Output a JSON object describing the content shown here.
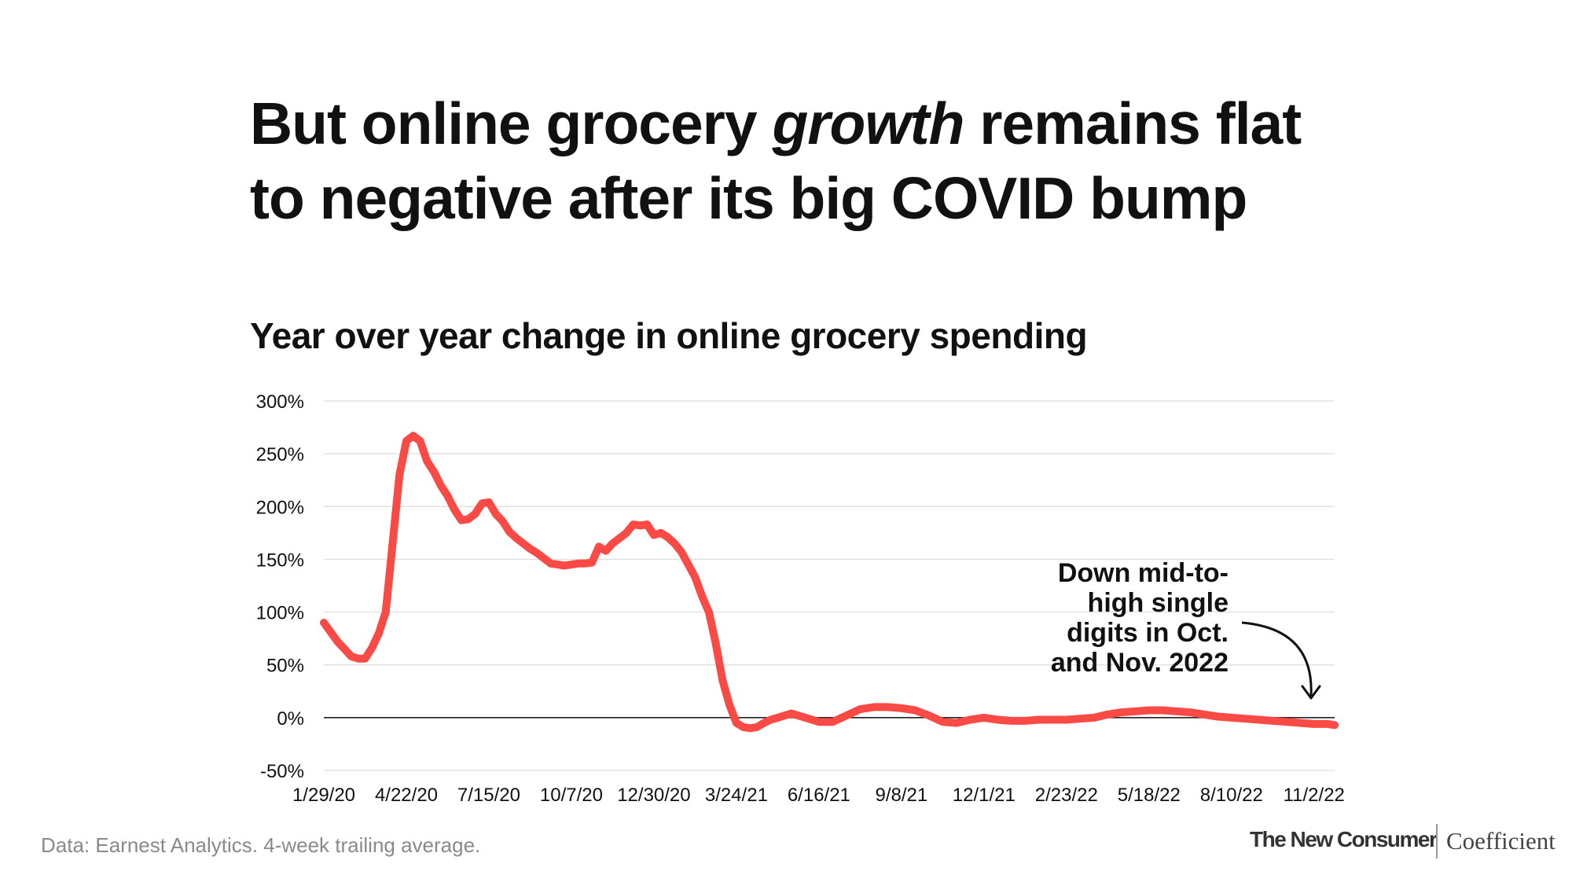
{
  "headline": {
    "part1": "But online grocery ",
    "emphasis": "growth",
    "part2": " remains flat",
    "line2": "to negative after its big COVID bump"
  },
  "footer": {
    "source": "Data: Earnest Analytics. 4-week trailing average.",
    "brand_left": "The New Consumer",
    "brand_right": "Coefficient"
  },
  "colors": {
    "line": "#f94a45",
    "grid": "#dddddd",
    "zero_line": "#222222",
    "text": "#111111"
  },
  "chart_data": {
    "type": "line",
    "title": "Year over year change in online grocery spending",
    "xlabel": "",
    "ylabel": "",
    "ylim": [
      -50,
      300
    ],
    "yticks": [
      300,
      250,
      200,
      150,
      100,
      50,
      0,
      -50
    ],
    "ytick_labels": [
      "300%",
      "250%",
      "200%",
      "150%",
      "100%",
      "50%",
      "0%",
      "-50%"
    ],
    "x_tick_labels": [
      "1/29/20",
      "4/22/20",
      "7/15/20",
      "10/7/20",
      "12/30/20",
      "3/24/21",
      "6/16/21",
      "9/8/21",
      "12/1/21",
      "2/23/22",
      "5/18/22",
      "8/10/22",
      "11/2/22"
    ],
    "x_tick_weeks": [
      0,
      12,
      24,
      36,
      48,
      60,
      72,
      84,
      96,
      108,
      120,
      132,
      144
    ],
    "grid": true,
    "legend": "none",
    "annotation": {
      "lines": [
        "Down mid-to-",
        "high single",
        "digits in Oct.",
        "and Nov. 2022"
      ]
    },
    "series": [
      {
        "x": [
          0,
          2,
          4,
          5,
          6,
          7,
          8,
          9,
          10,
          11,
          12,
          13,
          14,
          15,
          16,
          17,
          18,
          19,
          20,
          21,
          22,
          23,
          24,
          25,
          26,
          27,
          28,
          29,
          30,
          31,
          32,
          33,
          34,
          35,
          36,
          37,
          38,
          39,
          40,
          41,
          42,
          43,
          44,
          45,
          46,
          47,
          48,
          49,
          50,
          51,
          52,
          53,
          54,
          55,
          56,
          57,
          58,
          59,
          60,
          61,
          62,
          63,
          64,
          65,
          66,
          68,
          70,
          72,
          74,
          76,
          78,
          80,
          82,
          84,
          86,
          88,
          90,
          92,
          94,
          96,
          98,
          100,
          102,
          104,
          106,
          108,
          110,
          112,
          114,
          116,
          118,
          120,
          122,
          124,
          126,
          128,
          130,
          132,
          134,
          136,
          138,
          140,
          142,
          144,
          146,
          147
        ],
        "y": [
          90,
          72,
          58,
          56,
          56,
          66,
          80,
          100,
          165,
          230,
          262,
          267,
          262,
          243,
          233,
          220,
          210,
          197,
          187,
          188,
          193,
          203,
          204,
          193,
          186,
          176,
          170,
          165,
          160,
          156,
          151,
          146,
          145,
          144,
          145,
          146,
          146,
          147,
          162,
          158,
          165,
          170,
          175,
          183,
          182,
          183,
          173,
          175,
          171,
          165,
          157,
          145,
          133,
          115,
          100,
          70,
          35,
          12,
          -5,
          -9,
          -10,
          -9,
          -5,
          -2,
          0,
          4,
          0,
          -4,
          -4,
          2,
          8,
          10,
          10,
          9,
          7,
          2,
          -4,
          -5,
          -2,
          0,
          -2,
          -3,
          -3,
          -2,
          -2,
          -2,
          -1,
          0,
          3,
          5,
          6,
          7,
          7,
          6,
          5,
          3,
          1,
          0,
          -1,
          -2,
          -3,
          -4,
          -5,
          -6,
          -6,
          -7
        ]
      }
    ]
  }
}
